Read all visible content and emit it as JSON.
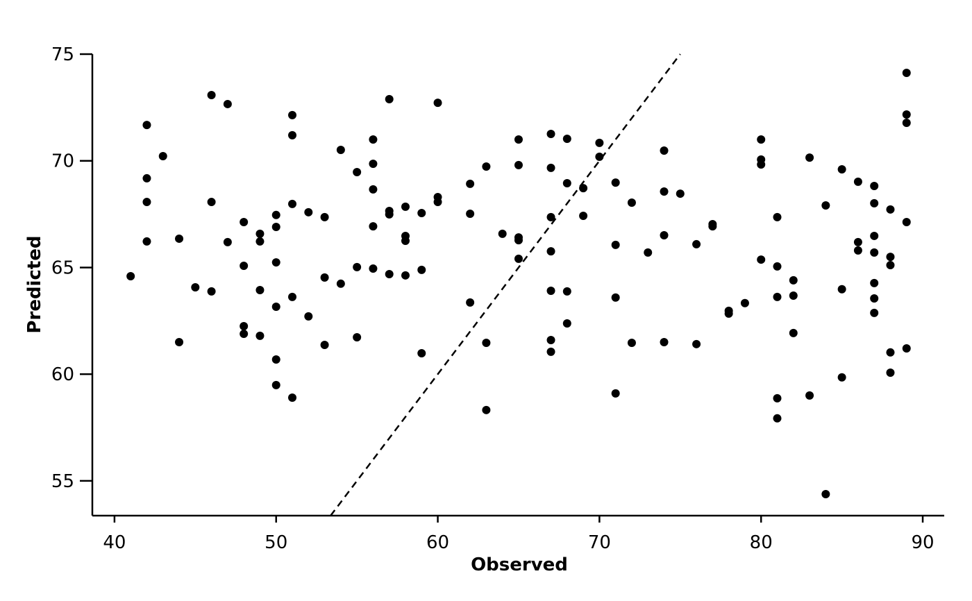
{
  "chart_data": {
    "type": "scatter",
    "x_label": "Observed",
    "y_label": "Predicted",
    "xlim": [
      38.63,
      91.33
    ],
    "ylim": [
      53.37,
      75
    ],
    "xticks": [
      40,
      50,
      60,
      70,
      80,
      90
    ],
    "yticks": [
      55,
      60,
      65,
      70,
      75
    ],
    "identity_line": true,
    "series": [
      {
        "color": "#000000",
        "x": [
          41,
          42,
          42,
          42,
          42,
          43,
          44,
          44,
          45,
          46,
          46,
          46,
          47,
          47,
          48,
          48,
          48,
          48,
          49,
          49,
          49,
          49,
          50,
          50,
          50,
          50,
          50,
          50,
          51,
          51,
          51,
          51,
          51,
          52,
          52,
          53,
          53,
          53,
          54,
          54,
          55,
          55,
          55,
          56,
          56,
          56,
          56,
          56,
          57,
          57,
          57,
          57,
          58,
          58,
          58,
          58,
          59,
          59,
          59,
          60,
          60,
          60,
          62,
          62,
          62,
          63,
          63,
          63,
          64,
          65,
          65,
          65,
          65,
          65,
          67,
          67,
          67,
          67,
          67,
          67,
          67,
          68,
          68,
          68,
          68,
          69,
          69,
          70,
          70,
          71,
          71,
          71,
          71,
          72,
          72,
          73,
          74,
          74,
          74,
          74,
          75,
          76,
          76,
          77,
          77,
          78,
          78,
          79,
          80,
          80,
          80,
          80,
          81,
          81,
          81,
          81,
          81,
          82,
          82,
          82,
          83,
          83,
          84,
          84,
          85,
          85,
          85,
          86,
          86,
          86,
          87,
          87,
          87,
          87,
          87,
          87,
          87,
          88,
          88,
          88,
          88,
          88,
          89,
          89,
          89,
          89,
          89
        ],
        "values": [
          64.59,
          71.68,
          69.18,
          68.07,
          66.22,
          70.22,
          66.35,
          61.5,
          64.07,
          73.08,
          68.07,
          63.88,
          72.66,
          66.19,
          67.13,
          65.08,
          62.25,
          61.89,
          66.58,
          66.22,
          63.94,
          61.8,
          67.46,
          66.9,
          65.24,
          63.16,
          60.69,
          59.49,
          72.14,
          71.2,
          67.98,
          63.62,
          58.9,
          67.59,
          62.71,
          67.36,
          64.53,
          61.37,
          70.51,
          64.24,
          69.47,
          65.02,
          61.73,
          71.0,
          69.86,
          68.66,
          66.93,
          64.95,
          72.89,
          67.65,
          67.49,
          64.69,
          67.85,
          66.48,
          66.25,
          64.63,
          67.55,
          64.89,
          60.98,
          72.72,
          68.3,
          68.07,
          68.92,
          67.52,
          63.36,
          69.73,
          61.47,
          58.32,
          66.58,
          71.0,
          69.8,
          66.41,
          66.28,
          65.41,
          71.26,
          69.67,
          67.36,
          65.76,
          63.91,
          61.6,
          61.05,
          71.03,
          68.95,
          63.88,
          62.38,
          68.72,
          67.42,
          70.84,
          70.19,
          68.98,
          66.06,
          63.59,
          59.1,
          68.04,
          61.47,
          65.7,
          70.48,
          68.56,
          66.51,
          61.5,
          68.46,
          66.09,
          61.41,
          67.03,
          66.93,
          62.97,
          62.84,
          63.33,
          71.0,
          70.06,
          69.83,
          65.37,
          67.36,
          65.05,
          63.62,
          58.87,
          57.93,
          64.4,
          63.68,
          61.93,
          70.15,
          59.0,
          67.91,
          54.38,
          69.6,
          63.98,
          59.85,
          69.02,
          66.19,
          65.8,
          68.82,
          68.01,
          66.48,
          65.7,
          64.27,
          63.55,
          62.87,
          67.72,
          65.5,
          65.11,
          61.02,
          60.07,
          74.12,
          72.17,
          71.78,
          67.13,
          61.21
        ]
      }
    ]
  }
}
